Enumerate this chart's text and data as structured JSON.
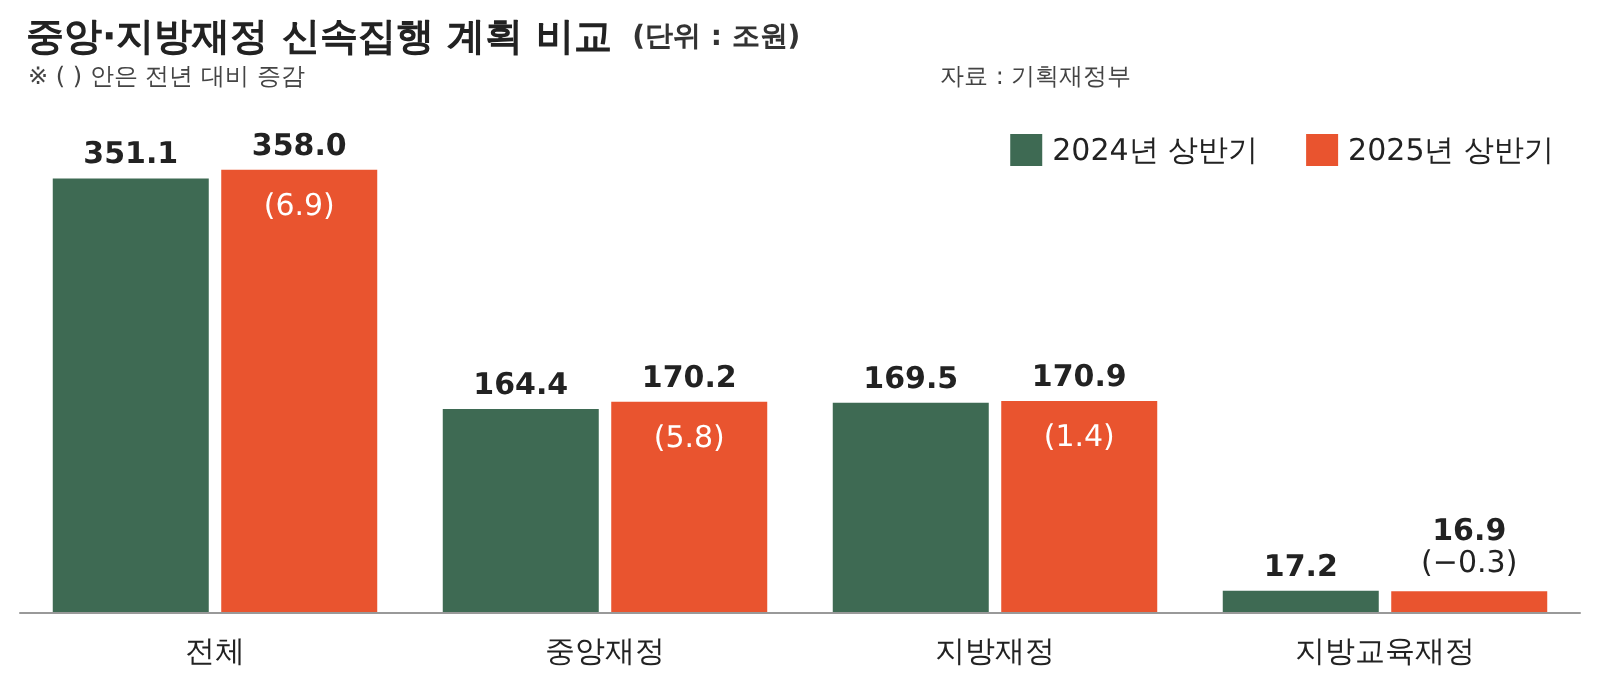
{
  "chart_data": {
    "type": "bar",
    "title": "중앙·지방재정 신속집행 계획 비교",
    "subtitle": "(단위 : 조원)",
    "categories": [
      "전체",
      "중앙재정",
      "지방재정",
      "지방교육재정"
    ],
    "series": [
      {
        "name": "2024년 상반기",
        "color": "#3e6a53",
        "values": [
          351.1,
          164.4,
          169.5,
          17.2
        ],
        "value_labels": [
          "351.1",
          "164.4",
          "169.5",
          "17.2"
        ]
      },
      {
        "name": "2025년 상반기",
        "color": "#e9542f",
        "values": [
          358.0,
          170.2,
          170.9,
          16.9
        ],
        "value_labels": [
          "358.0",
          "170.2",
          "170.9",
          "16.9"
        ]
      }
    ],
    "legend": "top right",
    "annotations": [
      "※ ( ) 안은 전년 대비 증감",
      "자료 : 기획재정부",
      {
        "text": "(6.9)",
        "x": "전체",
        "y": 358.0
      },
      {
        "text": "(5.8)",
        "x": "중앙재정",
        "y": 170.2
      },
      {
        "text": "(1.4)",
        "x": "지방재정",
        "y": 170.9
      },
      {
        "text": "(−0.3)",
        "x": "지방교육재정",
        "y": 16.9
      }
    ]
  }
}
